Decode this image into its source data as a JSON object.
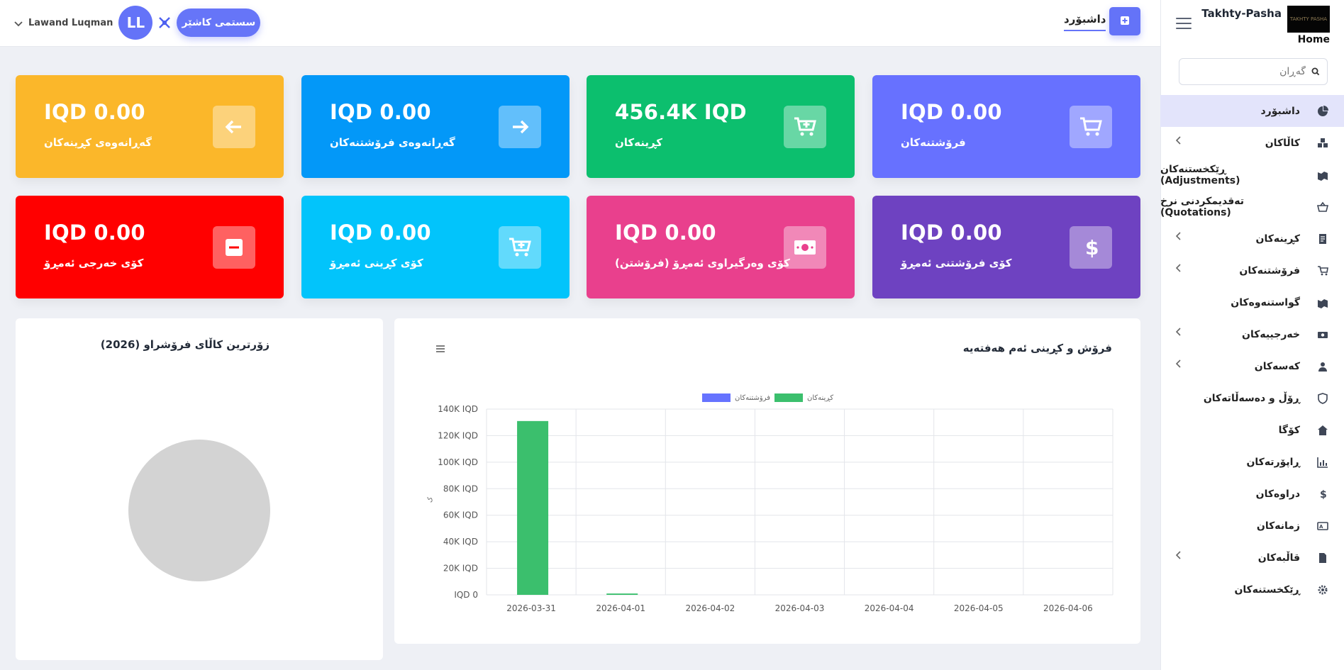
{
  "brand": {
    "title": "Takhty-Pasha",
    "logo_text": "TAKHTY PASHA",
    "home_label": "Home"
  },
  "top": {
    "dashboard_tab": "داشبۆرد",
    "pos_button": "سستمی کاشێر",
    "user_initials": "LL",
    "user_name": "Lawand Luqman"
  },
  "search": {
    "placeholder": "گەڕان"
  },
  "sidebar": {
    "items": [
      {
        "label": "داشبۆرد",
        "icon": "pie-chart-icon",
        "active": true,
        "has_chevron": false
      },
      {
        "label": "کاڵاکان",
        "icon": "boxes-icon",
        "active": false,
        "has_chevron": true
      },
      {
        "label": "ڕێکخستنەکان (Adjustments)",
        "icon": "adjustments-icon",
        "active": false,
        "has_chevron": false
      },
      {
        "label": "تەقدیمکردنی نرخ (Quotations)",
        "icon": "basket-icon",
        "active": false,
        "has_chevron": false
      },
      {
        "label": "کڕینەکان",
        "icon": "receipt-icon",
        "active": false,
        "has_chevron": true
      },
      {
        "label": "فرۆشتنەکان",
        "icon": "cart-icon",
        "active": false,
        "has_chevron": true
      },
      {
        "label": "گواستنەوەکان",
        "icon": "transfer-icon",
        "active": false,
        "has_chevron": false
      },
      {
        "label": "خەرجییەکان",
        "icon": "money-icon",
        "active": false,
        "has_chevron": true
      },
      {
        "label": "کەسەکان",
        "icon": "person-icon",
        "active": false,
        "has_chevron": true
      },
      {
        "label": "ڕۆڵ و دەسەڵاتەکان",
        "icon": "shield-icon",
        "active": false,
        "has_chevron": false
      },
      {
        "label": "کۆگا",
        "icon": "home-icon",
        "active": false,
        "has_chevron": false
      },
      {
        "label": "ڕاپۆرتەکان",
        "icon": "chart-icon",
        "active": false,
        "has_chevron": false
      },
      {
        "label": "دراوەکان",
        "icon": "dollar-icon",
        "active": false,
        "has_chevron": false
      },
      {
        "label": "زمانەکان",
        "icon": "language-icon",
        "active": false,
        "has_chevron": false
      },
      {
        "label": "قاڵبەکان",
        "icon": "file-icon",
        "active": false,
        "has_chevron": true
      },
      {
        "label": "ڕێکخستنەکان",
        "icon": "gear-icon",
        "active": false,
        "has_chevron": false
      }
    ]
  },
  "cards": [
    {
      "value": "IQD 0.00",
      "label": "گەڕانەوەی کڕینەکان",
      "color": "#fbb72a",
      "icon": "arrow-left-icon"
    },
    {
      "value": "IQD 0.00",
      "label": "گەڕانەوەی فرۆشتنەکان",
      "color": "#0398f8",
      "icon": "arrow-right-icon"
    },
    {
      "value": "456.4K IQD",
      "label": "کڕینەکان",
      "color": "#0cbf6e",
      "icon": "cart-plus-icon"
    },
    {
      "value": "IQD 0.00",
      "label": "فرۆشتنەکان",
      "color": "#6771ff",
      "icon": "cart-icon"
    },
    {
      "value": "IQD 0.00",
      "label": "کۆی خەرجی ئەمڕۆ",
      "color": "#ff0000",
      "icon": "minus-box-icon"
    },
    {
      "value": "IQD 0.00",
      "label": "کۆی کڕینی ئەمڕۆ",
      "color": "#02c4fb",
      "icon": "cart-plus-icon"
    },
    {
      "value": "IQD 0.00",
      "label": "کۆی وەرگیراوی ئەمڕۆ (فرۆشتن)",
      "color": "#e9408d",
      "icon": "cash-icon"
    },
    {
      "value": "IQD 0.00",
      "label": "کۆی فرۆشتنی ئەمڕۆ",
      "color": "#6e42c1",
      "icon": "dollar-icon"
    }
  ],
  "pie_card": {
    "title": "زۆرترین کاڵای فرۆشراو (2026)"
  },
  "bar_card": {
    "title": "فرۆش و کڕینی ئەم هەفتەیە"
  },
  "chart_data": {
    "type": "bar",
    "categories": [
      "2026-03-31",
      "2026-04-01",
      "2026-04-02",
      "2026-04-03",
      "2026-04-04",
      "2026-04-05",
      "2026-04-06"
    ],
    "series": [
      {
        "name": "فرۆشتنەکان",
        "color": "#6673ff",
        "values": [
          0,
          0,
          0,
          0,
          0,
          0,
          0
        ]
      },
      {
        "name": "کڕینەکان",
        "color": "#3bbf6d",
        "values": [
          131000,
          1000,
          0,
          0,
          0,
          0,
          0
        ]
      }
    ],
    "ylim": [
      0,
      140000
    ],
    "ytick_labels": [
      "IQD 0",
      "20K IQD",
      "40K IQD",
      "60K IQD",
      "80K IQD",
      "100K IQD",
      "120K IQD",
      "140K IQD"
    ],
    "ylabel": "ک",
    "grid": true,
    "legend_position": "top"
  }
}
